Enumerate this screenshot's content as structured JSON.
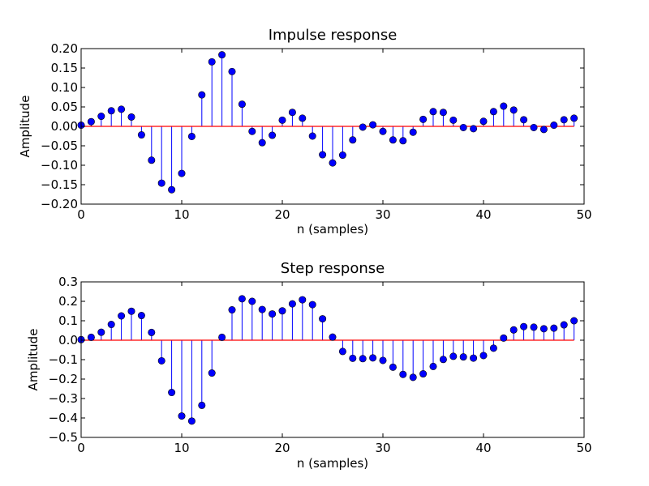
{
  "chart_data": [
    {
      "type": "stem",
      "title": "Impulse response",
      "xlabel": "n (samples)",
      "ylabel": "Amplitude",
      "xlim": [
        0,
        50
      ],
      "ylim": [
        -0.2,
        0.2
      ],
      "xticks": [
        0,
        10,
        20,
        30,
        40,
        50
      ],
      "yticks": [
        -0.2,
        -0.15,
        -0.1,
        -0.05,
        0.0,
        0.05,
        0.1,
        0.15,
        0.2
      ],
      "ytick_labels": [
        "−0.20",
        "−0.15",
        "−0.10",
        "−0.05",
        "0.00",
        "0.05",
        "0.10",
        "0.15",
        "0.20"
      ],
      "xtick_labels": [
        "0",
        "10",
        "20",
        "30",
        "40",
        "50"
      ],
      "stem_color": "#0000ff",
      "marker_color": "#0000ff",
      "baseline_color": "#ff0000",
      "x": [
        0,
        1,
        2,
        3,
        4,
        5,
        6,
        7,
        8,
        9,
        10,
        11,
        12,
        13,
        14,
        15,
        16,
        17,
        18,
        19,
        20,
        21,
        22,
        23,
        24,
        25,
        26,
        27,
        28,
        29,
        30,
        31,
        32,
        33,
        34,
        35,
        36,
        37,
        38,
        39,
        40,
        41,
        42,
        43,
        44,
        45,
        46,
        47,
        48,
        49
      ],
      "values": [
        0.003,
        0.012,
        0.026,
        0.04,
        0.044,
        0.024,
        -0.022,
        -0.087,
        -0.146,
        -0.163,
        -0.121,
        -0.026,
        0.081,
        0.166,
        0.184,
        0.141,
        0.057,
        -0.013,
        -0.042,
        -0.023,
        0.016,
        0.036,
        0.021,
        -0.025,
        -0.073,
        -0.094,
        -0.074,
        -0.035,
        -0.002,
        0.004,
        -0.013,
        -0.035,
        -0.037,
        -0.015,
        0.018,
        0.038,
        0.036,
        0.016,
        -0.003,
        -0.006,
        0.013,
        0.038,
        0.052,
        0.042,
        0.017,
        -0.003,
        -0.008,
        0.003,
        0.017,
        0.021
      ]
    },
    {
      "type": "stem",
      "title": "Step response",
      "xlabel": "n (samples)",
      "ylabel": "Amplitude",
      "xlim": [
        0,
        50
      ],
      "ylim": [
        -0.5,
        0.3
      ],
      "xticks": [
        0,
        10,
        20,
        30,
        40,
        50
      ],
      "yticks": [
        -0.5,
        -0.4,
        -0.3,
        -0.2,
        -0.1,
        0.0,
        0.1,
        0.2,
        0.3
      ],
      "ytick_labels": [
        "−0.5",
        "−0.4",
        "−0.3",
        "−0.2",
        "−0.1",
        "0.0",
        "0.1",
        "0.2",
        "0.3"
      ],
      "xtick_labels": [
        "0",
        "10",
        "20",
        "30",
        "40",
        "50"
      ],
      "stem_color": "#0000ff",
      "marker_color": "#0000ff",
      "baseline_color": "#ff0000",
      "x": [
        0,
        1,
        2,
        3,
        4,
        5,
        6,
        7,
        8,
        9,
        10,
        11,
        12,
        13,
        14,
        15,
        16,
        17,
        18,
        19,
        20,
        21,
        22,
        23,
        24,
        25,
        26,
        27,
        28,
        29,
        30,
        31,
        32,
        33,
        34,
        35,
        36,
        37,
        38,
        39,
        40,
        41,
        42,
        43,
        44,
        45,
        46,
        47,
        48,
        49
      ],
      "values": [
        0.003,
        0.015,
        0.041,
        0.081,
        0.125,
        0.149,
        0.127,
        0.04,
        -0.106,
        -0.269,
        -0.39,
        -0.416,
        -0.335,
        -0.169,
        0.015,
        0.156,
        0.213,
        0.2,
        0.158,
        0.135,
        0.151,
        0.187,
        0.208,
        0.183,
        0.11,
        0.016,
        -0.058,
        -0.093,
        -0.095,
        -0.091,
        -0.104,
        -0.139,
        -0.176,
        -0.191,
        -0.173,
        -0.135,
        -0.099,
        -0.083,
        -0.086,
        -0.092,
        -0.079,
        -0.041,
        0.011,
        0.053,
        0.07,
        0.067,
        0.059,
        0.062,
        0.079,
        0.1
      ]
    }
  ]
}
